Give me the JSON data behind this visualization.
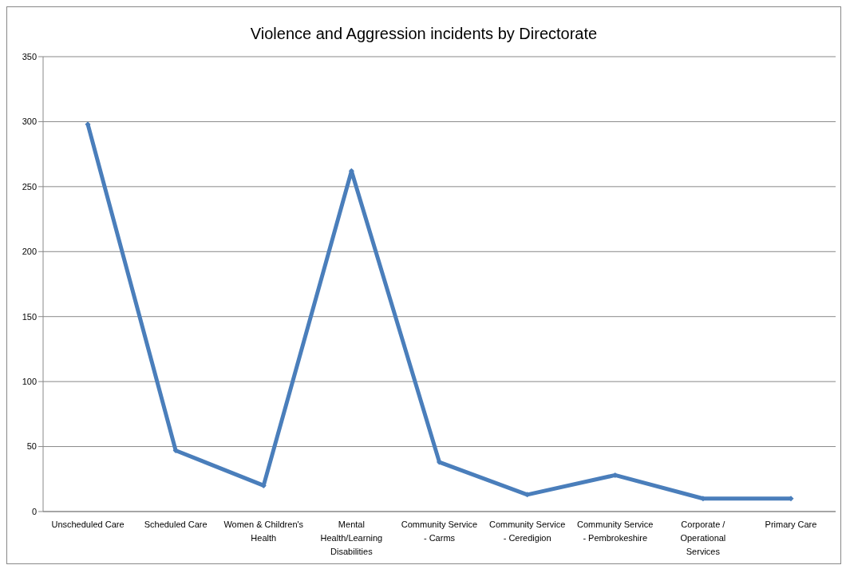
{
  "chart_data": {
    "type": "line",
    "title": "Violence and Aggression incidents by Directorate",
    "categories": [
      "Unscheduled Care",
      "Scheduled Care",
      "Women & Children's Health",
      "Mental Health/Learning Disabilities",
      "Community Service - Carms",
      "Community Service - Ceredigion",
      "Community Service - Pembrokeshire",
      "Corporate / Operational Services",
      "Primary Care"
    ],
    "series": [
      {
        "color": "#4a7ebb",
        "values": [
          298,
          47,
          20,
          262,
          38,
          13,
          28,
          10,
          10
        ]
      }
    ],
    "ylim": [
      0,
      350
    ],
    "yticks": [
      0,
      50,
      100,
      150,
      200,
      250,
      300,
      350
    ],
    "grid": "y",
    "marker": "diamond",
    "line_style": "solid"
  }
}
